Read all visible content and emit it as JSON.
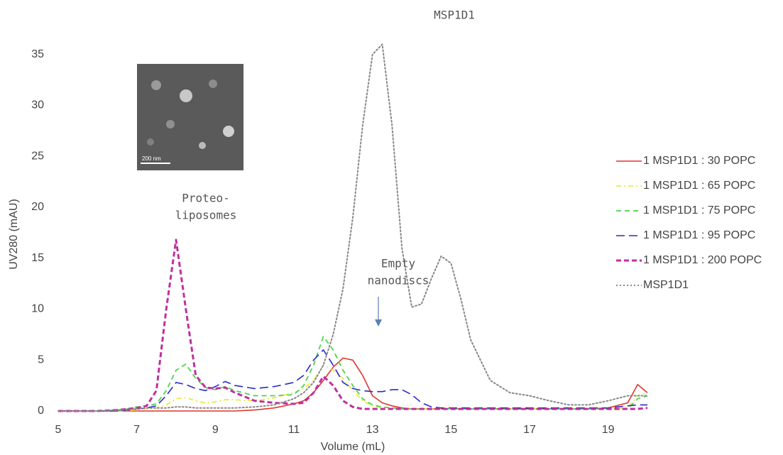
{
  "chart_data": {
    "type": "line",
    "xlabel": "Volume (mL)",
    "ylabel": "UV280 (mAU)",
    "x": [
      5,
      6,
      6.5,
      7,
      7.25,
      7.5,
      7.75,
      8,
      8.25,
      8.5,
      8.75,
      9,
      9.25,
      9.5,
      10,
      10.5,
      11,
      11.25,
      11.5,
      11.75,
      12,
      12.25,
      12.5,
      12.75,
      13,
      13.25,
      13.5,
      13.75,
      14,
      14.25,
      14.5,
      14.75,
      15,
      15.25,
      15.5,
      16,
      16.5,
      17,
      17.5,
      18,
      18.5,
      19,
      19.5,
      19.75,
      20
    ],
    "xlim": [
      5,
      20
    ],
    "xticks": [
      5,
      7,
      9,
      11,
      13,
      15,
      17,
      19
    ],
    "ylim": [
      0,
      40
    ],
    "yticks": [
      0,
      5,
      10,
      15,
      20,
      25,
      30,
      35
    ],
    "grid": false,
    "series": [
      {
        "name": "1 MSP1D1 : 30 POPC",
        "color": "#e0342c",
        "dash": "solid",
        "values": [
          0,
          0,
          0,
          0,
          0,
          0,
          0,
          0,
          0,
          0,
          0,
          0,
          0,
          0,
          0.1,
          0.3,
          0.7,
          1,
          1.8,
          3,
          4.3,
          5.2,
          5,
          3.5,
          1.5,
          0.8,
          0.5,
          0.3,
          0.2,
          0.2,
          0.2,
          0.2,
          0.2,
          0.2,
          0.2,
          0.2,
          0.2,
          0.2,
          0.2,
          0.2,
          0.2,
          0.3,
          0.8,
          2.6,
          1.8
        ]
      },
      {
        "name": "1 MSP1D1 : 65 POPC",
        "color": "#e6e635",
        "dash": "dashdot",
        "values": [
          0,
          0,
          0,
          0.1,
          0.2,
          0.3,
          0.6,
          1.2,
          1.3,
          1,
          0.8,
          0.9,
          1.1,
          1.1,
          1,
          1.3,
          1.8,
          2.2,
          3,
          4.5,
          4,
          3.2,
          2,
          1,
          0.5,
          0.3,
          0.2,
          0.2,
          0.2,
          0.2,
          0.2,
          0.2,
          0.2,
          0.2,
          0.2,
          0.2,
          0.2,
          0.2,
          0.2,
          0.2,
          0.2,
          0.2,
          0.3,
          1.5,
          1.8
        ]
      },
      {
        "name": "1 MSP1D1 : 75 POPC",
        "color": "#4cd44c",
        "dash": "dashed",
        "values": [
          0,
          0,
          0,
          0.4,
          0.5,
          0.7,
          2,
          4,
          4.6,
          3.2,
          2.3,
          2.1,
          2.4,
          2,
          1.5,
          1.5,
          1.6,
          2.5,
          4.5,
          7.3,
          6,
          4,
          2.5,
          1.2,
          0.6,
          0.4,
          0.3,
          0.2,
          0.2,
          0.2,
          0.2,
          0.2,
          0.2,
          0.2,
          0.2,
          0.2,
          0.2,
          0.2,
          0.2,
          0.2,
          0.2,
          0.2,
          0.2,
          1.2,
          1.5
        ]
      },
      {
        "name": "1 MSP1D1 : 95 POPC",
        "color": "#2a2ac8",
        "dash": "longdash",
        "values": [
          0,
          0,
          0,
          0.2,
          0.3,
          0.5,
          1.5,
          2.8,
          2.6,
          2.2,
          2,
          2.4,
          2.9,
          2.5,
          2.2,
          2.4,
          2.8,
          3.5,
          5,
          6,
          4.5,
          2.8,
          2.2,
          2,
          1.9,
          1.9,
          2.1,
          2.1,
          1.6,
          0.8,
          0.4,
          0.3,
          0.3,
          0.3,
          0.3,
          0.3,
          0.3,
          0.3,
          0.3,
          0.3,
          0.3,
          0.3,
          0.5,
          0.6,
          0.6
        ]
      },
      {
        "name": "1 MSP1D1 : 200 POPC",
        "color": "#bf2fa0",
        "dash": "dashedthick",
        "values": [
          0,
          0,
          0.1,
          0.3,
          0.5,
          2,
          10,
          16.8,
          10,
          3.5,
          2.3,
          2.2,
          2.3,
          1.8,
          1,
          0.8,
          0.7,
          0.8,
          1.8,
          3.4,
          2.5,
          1,
          0.4,
          0.2,
          0.2,
          0.2,
          0.2,
          0.2,
          0.2,
          0.2,
          0.2,
          0.2,
          0.2,
          0.2,
          0.2,
          0.2,
          0.2,
          0.2,
          0.2,
          0.2,
          0.2,
          0.2,
          0.2,
          0.2,
          0.3
        ]
      },
      {
        "name": "MSP1D1",
        "color": "#888888",
        "dash": "dotted",
        "values": [
          0,
          0,
          0.1,
          0.2,
          0.3,
          0.3,
          0.3,
          0.4,
          0.4,
          0.3,
          0.3,
          0.3,
          0.3,
          0.3,
          0.4,
          0.6,
          1.2,
          1.8,
          2.8,
          4.5,
          7.5,
          12,
          19,
          28,
          35,
          36,
          28,
          16,
          10.2,
          10.5,
          13,
          15.2,
          14.5,
          11,
          7,
          3,
          1.8,
          1.5,
          1,
          0.6,
          0.6,
          1,
          1.5,
          1.5,
          1.5
        ]
      }
    ],
    "annotations": [
      {
        "lines": [
          "MSP1D1"
        ]
      },
      {
        "lines": [
          "Proteo-",
          "liposomes"
        ]
      },
      {
        "lines": [
          "Empty",
          "nanodiscs"
        ]
      }
    ],
    "inset_label": "200 nm"
  }
}
